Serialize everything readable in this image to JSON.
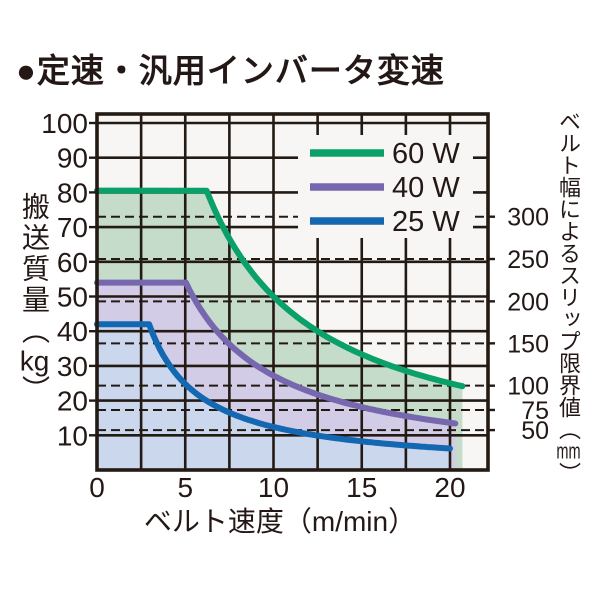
{
  "title": "●定速・汎用インバータ変速",
  "colors": {
    "text": "#231815",
    "grid": "#241a14",
    "plot_bg": "#f7f6f4",
    "page_bg": "#ffffff"
  },
  "chart_data": {
    "type": "area",
    "title": "定速・汎用インバータ変速",
    "xlabel": "ベルト速度（m/min）",
    "ylabel": "搬送質量（kg）",
    "ylabel_parts": {
      "text": "搬送質量",
      "open": "（",
      "unit": "kg",
      "close": "）"
    },
    "y2label_parts": {
      "text": "ベルト幅によるスリップ限界値",
      "open": "（",
      "unit": "mm",
      "close": "）"
    },
    "xlim": [
      0,
      22.1
    ],
    "ylim": [
      0,
      102.5
    ],
    "x_ticks": [
      0,
      5,
      10,
      15,
      20
    ],
    "x_minor_step": 2.5,
    "y_ticks": [
      10,
      20,
      30,
      40,
      50,
      60,
      70,
      80,
      90,
      100
    ],
    "grid": true,
    "legend_position": "upper right",
    "series": [
      {
        "name": "60 W",
        "color": "#0aa06a",
        "fill": "#c4dcc9",
        "flat": 80.5,
        "power_const": 500,
        "v_end": 20.7,
        "points": [
          [
            0,
            80
          ],
          [
            5,
            80
          ],
          [
            6.2,
            80
          ],
          [
            7.5,
            67
          ],
          [
            10,
            50
          ],
          [
            12.5,
            40
          ],
          [
            15,
            33
          ],
          [
            17.5,
            29
          ],
          [
            20,
            25
          ],
          [
            20.7,
            24
          ]
        ]
      },
      {
        "name": "40 W",
        "color": "#7667ae",
        "fill": "#d3cce6",
        "flat": 54,
        "power_const": 272,
        "v_end": 20.3,
        "points": [
          [
            0,
            54
          ],
          [
            5,
            54
          ],
          [
            7.5,
            36
          ],
          [
            10,
            27
          ],
          [
            12.5,
            22
          ],
          [
            15,
            18
          ],
          [
            17.5,
            15.5
          ],
          [
            20,
            13.6
          ],
          [
            20.3,
            13.4
          ]
        ]
      },
      {
        "name": "25 W",
        "color": "#1467b1",
        "fill": "#cad7ed",
        "flat": 42,
        "power_const": 124,
        "v_end": 20.0,
        "points": [
          [
            0,
            42
          ],
          [
            3,
            42
          ],
          [
            5,
            25
          ],
          [
            7.5,
            16.5
          ],
          [
            10,
            12.4
          ],
          [
            12.5,
            10
          ],
          [
            15,
            8.3
          ],
          [
            17.5,
            7.1
          ],
          [
            20,
            6.2
          ]
        ]
      }
    ],
    "right_axis": {
      "label": "ベルト幅によるスリップ限界値（mm）",
      "ticks": [
        {
          "mm": "300",
          "kg": 73.0
        },
        {
          "mm": "250",
          "kg": 60.8
        },
        {
          "mm": "200",
          "kg": 48.6
        },
        {
          "mm": "150",
          "kg": 36.5
        },
        {
          "mm": "100",
          "kg": 24.3
        },
        {
          "mm": "75",
          "kg": 17.3
        },
        {
          "mm": "50",
          "kg": 11.5
        }
      ]
    }
  }
}
